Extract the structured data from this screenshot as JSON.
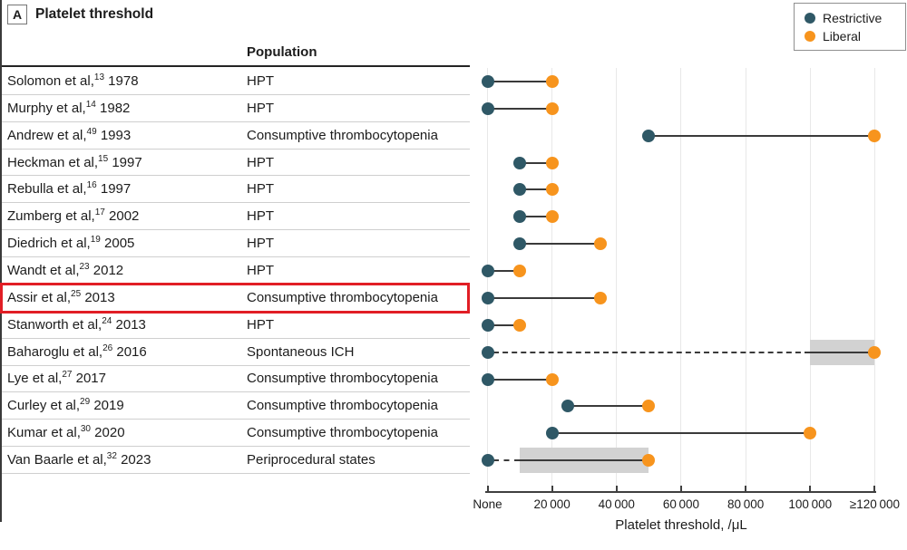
{
  "header": {
    "panel_label": "A",
    "title": "Platelet threshold"
  },
  "table": {
    "population_header": "Population"
  },
  "colors": {
    "restrictive": "#2F5866",
    "liberal": "#F7941D",
    "connector": "#3A3A3A",
    "gridline": "#E8E8E8",
    "band": "#D2D2D2",
    "highlight": "#E11E25",
    "row_divider": "#CFCFCF",
    "header_rule": "#242424",
    "text": "#1C1C1C"
  },
  "chart_data": {
    "type": "scatter",
    "variant": "dumbbell-forest",
    "title": "Platelet threshold",
    "xlabel": "Platelet threshold, /μL",
    "xlim": [
      0,
      120000
    ],
    "grid": true,
    "x_ticks": [
      {
        "label": "None",
        "value": 0
      },
      {
        "label": "20 000",
        "value": 20000
      },
      {
        "label": "40 000",
        "value": 40000
      },
      {
        "label": "60 000",
        "value": 60000
      },
      {
        "label": "80 000",
        "value": 80000
      },
      {
        "label": "100 000",
        "value": 100000
      },
      {
        "label": "≥120 000",
        "value": 120000
      }
    ],
    "legend": {
      "position": "top-right",
      "entries": [
        {
          "label": "Restrictive",
          "color": "#2F5866"
        },
        {
          "label": "Liberal",
          "color": "#F7941D"
        }
      ]
    },
    "rows": [
      {
        "author": "Solomon et al,",
        "ref": "13",
        "year": "1978",
        "population": "HPT",
        "restrictive": 0,
        "liberal": 20000,
        "dashed_to": null,
        "band": null,
        "highlighted": false
      },
      {
        "author": "Murphy et al,",
        "ref": "14",
        "year": "1982",
        "population": "HPT",
        "restrictive": 0,
        "liberal": 20000,
        "dashed_to": null,
        "band": null,
        "highlighted": false
      },
      {
        "author": "Andrew et al,",
        "ref": "49",
        "year": "1993",
        "population": "Consumptive thrombocytopenia",
        "restrictive": 50000,
        "liberal": 120000,
        "dashed_to": null,
        "band": null,
        "highlighted": false
      },
      {
        "author": "Heckman et al,",
        "ref": "15",
        "year": "1997",
        "population": "HPT",
        "restrictive": 10000,
        "liberal": 20000,
        "dashed_to": null,
        "band": null,
        "highlighted": false
      },
      {
        "author": "Rebulla et al,",
        "ref": "16",
        "year": "1997",
        "population": "HPT",
        "restrictive": 10000,
        "liberal": 20000,
        "dashed_to": null,
        "band": null,
        "highlighted": false
      },
      {
        "author": "Zumberg et al,",
        "ref": "17",
        "year": "2002",
        "population": "HPT",
        "restrictive": 10000,
        "liberal": 20000,
        "dashed_to": null,
        "band": null,
        "highlighted": false
      },
      {
        "author": "Diedrich et al,",
        "ref": "19",
        "year": "2005",
        "population": "HPT",
        "restrictive": 10000,
        "liberal": 35000,
        "dashed_to": null,
        "band": null,
        "highlighted": false
      },
      {
        "author": "Wandt et al,",
        "ref": "23",
        "year": "2012",
        "population": "HPT",
        "restrictive": 0,
        "liberal": 10000,
        "dashed_to": null,
        "band": null,
        "highlighted": false
      },
      {
        "author": "Assir et al,",
        "ref": "25",
        "year": "2013",
        "population": "Consumptive thrombocytopenia",
        "restrictive": 0,
        "liberal": 35000,
        "dashed_to": null,
        "band": null,
        "highlighted": true
      },
      {
        "author": "Stanworth et al,",
        "ref": "24",
        "year": "2013",
        "population": "HPT",
        "restrictive": 0,
        "liberal": 10000,
        "dashed_to": null,
        "band": null,
        "highlighted": false
      },
      {
        "author": "Baharoglu et al,",
        "ref": "26",
        "year": "2016",
        "population": "Spontaneous ICH",
        "restrictive": 0,
        "liberal": 120000,
        "dashed_to": 100000,
        "band": [
          100000,
          120000
        ],
        "highlighted": false
      },
      {
        "author": "Lye et al,",
        "ref": "27",
        "year": "2017",
        "population": "Consumptive thrombocytopenia",
        "restrictive": 0,
        "liberal": 20000,
        "dashed_to": null,
        "band": null,
        "highlighted": false
      },
      {
        "author": "Curley et al,",
        "ref": "29",
        "year": "2019",
        "population": "Consumptive thrombocytopenia",
        "restrictive": 25000,
        "liberal": 50000,
        "dashed_to": null,
        "band": null,
        "highlighted": false
      },
      {
        "author": "Kumar et al,",
        "ref": "30",
        "year": "2020",
        "population": "Consumptive thrombocytopenia",
        "restrictive": 20000,
        "liberal": 100000,
        "dashed_to": null,
        "band": null,
        "highlighted": false
      },
      {
        "author": "Van Baarle et al,",
        "ref": "32",
        "year": "2023",
        "population": "Periprocedural states",
        "restrictive": 0,
        "liberal": 50000,
        "dashed_to": 10000,
        "band": [
          10000,
          50000
        ],
        "highlighted": false
      }
    ],
    "restrictive_none_label": "None"
  }
}
